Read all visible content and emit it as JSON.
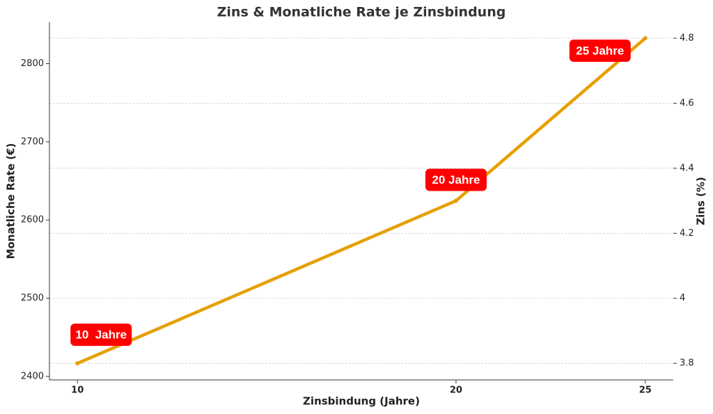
{
  "chart_data": {
    "type": "line",
    "title": "Zins & Monatliche Rate je Zinsbindung",
    "x_label": "Zinsbindung (Jahre)",
    "y_label": "Monatliche Rate (€)",
    "y2_label": "Zins (%)",
    "x": [
      10,
      20,
      25
    ],
    "series": [
      {
        "name": "Zins",
        "color": "#e69f00",
        "axis": "y2",
        "values": [
          3.8,
          4.3,
          4.8
        ]
      }
    ],
    "annotations": [
      "10  Jahre",
      "20 Jahre",
      "25 Jahre"
    ],
    "xlim": [
      9.26,
      25.74
    ],
    "xticks": [
      10,
      20,
      25
    ],
    "ylim": [
      2395.5,
      2853
    ],
    "yticks": [
      2400,
      2500,
      2600,
      2700,
      2800
    ],
    "y2lim": [
      3.749,
      4.849
    ],
    "y2ticks": [
      3.8,
      4.0,
      4.2,
      4.4,
      4.6,
      4.8
    ],
    "grid": true
  }
}
